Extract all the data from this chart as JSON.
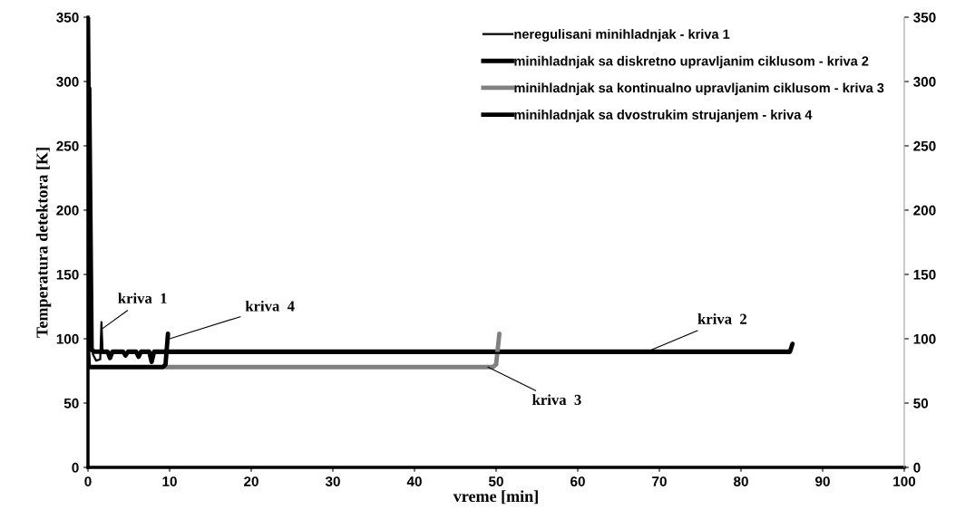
{
  "chart_data": {
    "type": "line",
    "xlabel": "vreme [min]",
    "ylabel": "Temperatura detektora [K]",
    "xlim": [
      0,
      100
    ],
    "xticks": [
      0,
      10,
      20,
      30,
      40,
      50,
      60,
      70,
      80,
      90,
      100
    ],
    "ylim": [
      0,
      350
    ],
    "yticks": [
      0,
      50,
      100,
      150,
      200,
      250,
      300,
      350
    ],
    "y2lim": [
      0,
      350
    ],
    "y2ticks": [
      0,
      50,
      100,
      150,
      200,
      250,
      300,
      350
    ],
    "grid": false,
    "legend": "top right",
    "marker": "none",
    "line_style": "solid",
    "series": [
      {
        "name": "neregulisani minihladnjak - kriva 1",
        "color": "#000000",
        "x": [
          0.3,
          0.6,
          1.0,
          1.5,
          1.65,
          1.8,
          3,
          10,
          30,
          60,
          86
        ],
        "values": [
          295,
          88,
          83,
          84,
          113,
          89,
          89,
          89,
          89,
          89,
          89
        ]
      },
      {
        "name": "minihladnjak sa diskretno upravljanim ciklusom - kriva 2",
        "color": "#000000",
        "x": [
          0,
          0.3,
          0.8,
          2.4,
          2.7,
          3.0,
          4.3,
          4.6,
          4.9,
          5.9,
          6.2,
          6.5,
          7.5,
          7.8,
          8.1,
          20,
          40,
          60,
          86,
          86.3
        ],
        "values": [
          350,
          92,
          90,
          90,
          85,
          90,
          90,
          87,
          90,
          90,
          86,
          90,
          90,
          82,
          90,
          90,
          90,
          90,
          90,
          96
        ]
      },
      {
        "name": "minihladnjak sa kontinualno upravljanim ciklusom - kriva 3",
        "color": "#808080",
        "x": [
          9.5,
          20,
          30,
          40,
          49.6,
          50.0,
          50.4
        ],
        "values": [
          78,
          78,
          78,
          78,
          78,
          80,
          104
        ]
      },
      {
        "name": "minihladnjak sa dvostrukim strujanjem - kriva 4",
        "color": "#000000",
        "x": [
          0,
          0.1,
          3,
          6,
          9.2,
          9.5,
          9.8
        ],
        "values": [
          92,
          78,
          78,
          78,
          78,
          80,
          104
        ]
      }
    ],
    "annotations": [
      {
        "text": "kriva  1",
        "x": 1.8,
        "y": 108
      },
      {
        "text": "kriva  4",
        "x": 10,
        "y": 100
      },
      {
        "text": "kriva  2",
        "x": 68.5,
        "y": 90
      },
      {
        "text": "kriva  3",
        "x": 49,
        "y": 78
      }
    ]
  }
}
